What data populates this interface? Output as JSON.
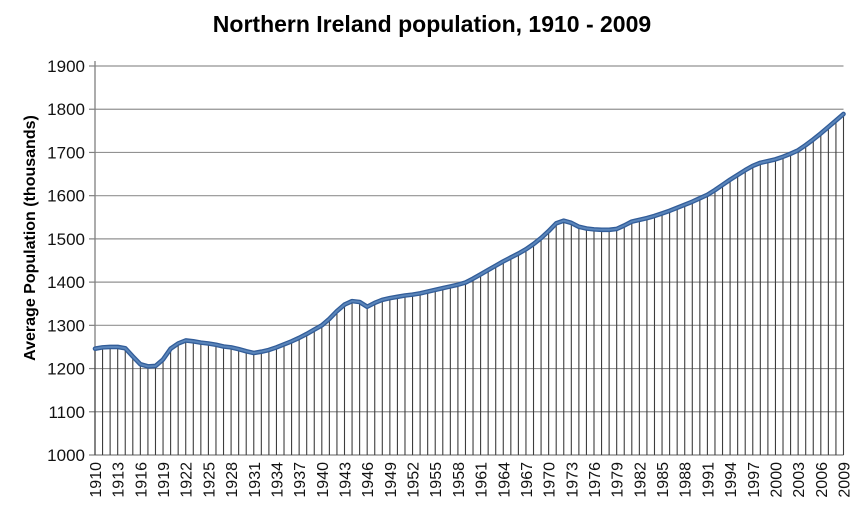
{
  "chart_data": {
    "type": "line",
    "title": "Northern Ireland population, 1910 - 2009",
    "ylabel": "Average Population (thousands)",
    "xlabel": "",
    "ylim": [
      1000,
      1900
    ],
    "ytick_step": 100,
    "ytick_labels": [
      "1000",
      "1100",
      "1200",
      "1300",
      "1400",
      "1500",
      "1600",
      "1700",
      "1800",
      "1900"
    ],
    "xtick_labels": [
      "1910",
      "1913",
      "1916",
      "1919",
      "1922",
      "1925",
      "1928",
      "1931",
      "1934",
      "1937",
      "1940",
      "1943",
      "1946",
      "1949",
      "1952",
      "1955",
      "1958",
      "1961",
      "1964",
      "1967",
      "1970",
      "1973",
      "1976",
      "1979",
      "1982",
      "1985",
      "1988",
      "1991",
      "1994",
      "1997",
      "2000",
      "2003",
      "2006",
      "2009"
    ],
    "grid": "horizontal",
    "legend": "none",
    "drop_lines_per_point": true,
    "series": [
      {
        "name": "Average Population (thousands)",
        "x": [
          1910,
          1911,
          1912,
          1913,
          1914,
          1915,
          1916,
          1917,
          1918,
          1919,
          1920,
          1921,
          1922,
          1923,
          1924,
          1925,
          1926,
          1927,
          1928,
          1929,
          1930,
          1931,
          1932,
          1933,
          1934,
          1935,
          1936,
          1937,
          1938,
          1939,
          1940,
          1941,
          1942,
          1943,
          1944,
          1945,
          1946,
          1947,
          1948,
          1949,
          1950,
          1951,
          1952,
          1953,
          1954,
          1955,
          1956,
          1957,
          1958,
          1959,
          1960,
          1961,
          1962,
          1963,
          1964,
          1965,
          1966,
          1967,
          1968,
          1969,
          1970,
          1971,
          1972,
          1973,
          1974,
          1975,
          1976,
          1977,
          1978,
          1979,
          1980,
          1981,
          1982,
          1983,
          1984,
          1985,
          1986,
          1987,
          1988,
          1989,
          1990,
          1991,
          1992,
          1993,
          1994,
          1995,
          1996,
          1997,
          1998,
          1999,
          2000,
          2001,
          2002,
          2003,
          2004,
          2005,
          2006,
          2007,
          2008,
          2009
        ],
        "values": [
          1246,
          1249,
          1250,
          1250,
          1247,
          1228,
          1210,
          1205,
          1206,
          1221,
          1246,
          1258,
          1265,
          1263,
          1260,
          1258,
          1255,
          1251,
          1249,
          1245,
          1240,
          1236,
          1239,
          1243,
          1249,
          1256,
          1263,
          1271,
          1280,
          1290,
          1300,
          1315,
          1333,
          1348,
          1356,
          1354,
          1343,
          1352,
          1359,
          1363,
          1366,
          1369,
          1371,
          1374,
          1378,
          1382,
          1386,
          1390,
          1394,
          1399,
          1408,
          1418,
          1428,
          1438,
          1448,
          1457,
          1466,
          1476,
          1488,
          1502,
          1518,
          1536,
          1542,
          1537,
          1528,
          1524,
          1522,
          1521,
          1521,
          1523,
          1531,
          1540,
          1544,
          1548,
          1553,
          1559,
          1565,
          1572,
          1579,
          1586,
          1594,
          1602,
          1613,
          1625,
          1637,
          1648,
          1659,
          1669,
          1676,
          1680,
          1684,
          1690,
          1697,
          1705,
          1717,
          1730,
          1744,
          1759,
          1774,
          1789
        ]
      }
    ]
  },
  "colors": {
    "background": "#ffffff",
    "text": "#111111",
    "grid_line": "#929292",
    "axis_line": "#808080",
    "drop_line": "#3d3d3d",
    "series_outer": "#325d99",
    "series_inner": "#5a85ba"
  }
}
